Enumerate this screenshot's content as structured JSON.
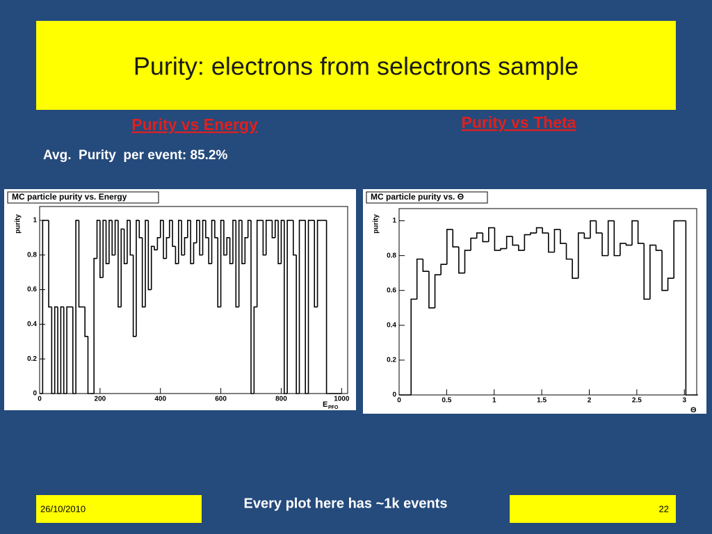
{
  "slide": {
    "title": "Purity: electrons from selectrons sample",
    "left_heading": "Purity vs Energy",
    "right_heading": "Purity vs Theta",
    "note": "Avg.  Purity  per event: 85.2%",
    "footer_date": "26/10/2010",
    "footer_text": "Every plot here has ~1k events",
    "footer_page": "22"
  },
  "chart_data": [
    {
      "type": "histogram",
      "title": "MC particle purity vs. Energy",
      "ylabel": "purity",
      "xlabel": "E",
      "xlabel_subscript": "PFO",
      "color": "#000000",
      "bins": [
        0,
        10,
        20,
        30,
        40,
        50,
        60,
        70,
        80,
        90,
        100,
        110,
        120,
        130,
        140,
        150,
        160,
        170,
        180,
        190,
        200,
        210,
        220,
        230,
        240,
        250,
        260,
        270,
        280,
        290,
        300,
        310,
        320,
        330,
        340,
        350,
        360,
        370,
        380,
        390,
        400,
        410,
        420,
        430,
        440,
        450,
        460,
        470,
        480,
        490,
        500,
        510,
        520,
        530,
        540,
        550,
        560,
        570,
        580,
        590,
        600,
        610,
        620,
        630,
        640,
        650,
        660,
        670,
        680,
        690,
        700,
        710,
        720,
        730,
        740,
        750,
        760,
        770,
        780,
        790,
        800,
        810,
        820,
        830,
        840,
        850,
        860,
        870,
        880,
        890,
        900,
        910,
        920,
        930,
        940,
        950,
        960,
        970,
        980,
        990,
        1000
      ],
      "values": [
        0,
        1,
        1,
        0.5,
        0,
        0.5,
        0,
        0.5,
        0,
        0.5,
        0.5,
        0,
        1,
        0.5,
        0.5,
        0.33,
        0,
        0,
        0.78,
        1,
        0.67,
        1,
        0.75,
        1,
        0.8,
        1,
        0.5,
        0.95,
        0.75,
        1,
        0.8,
        0.33,
        1,
        0.9,
        0.5,
        1,
        0.6,
        0.85,
        0.83,
        0.9,
        1,
        0.78,
        0.9,
        1,
        0.85,
        0.75,
        1,
        0.8,
        0.9,
        1,
        0.75,
        0.87,
        1,
        0.8,
        1,
        0.9,
        0.75,
        1,
        0.9,
        0.5,
        1,
        0.8,
        0.9,
        0.75,
        1,
        0.5,
        1,
        0.75,
        0.9,
        1,
        0,
        0.5,
        1,
        1,
        0.8,
        1,
        1,
        0.9,
        1,
        0.75,
        1,
        0,
        1,
        1,
        0.8,
        0,
        1,
        1,
        0,
        1,
        1,
        0.5,
        1,
        1,
        1,
        0,
        0,
        0,
        0,
        0
      ],
      "xlim": [
        0,
        1020
      ],
      "ylim": [
        0,
        1.08
      ],
      "xticks": [
        0,
        200,
        400,
        600,
        800,
        1000
      ],
      "yticks": [
        0,
        0.2,
        0.4,
        0.6,
        0.8,
        1
      ]
    },
    {
      "type": "histogram",
      "title": "MC particle purity vs. Θ",
      "ylabel": "purity",
      "xlabel": "Θ",
      "color": "#000000",
      "bins": [
        0,
        0.063,
        0.126,
        0.188,
        0.251,
        0.314,
        0.377,
        0.44,
        0.503,
        0.565,
        0.628,
        0.691,
        0.754,
        0.817,
        0.88,
        0.942,
        1.005,
        1.068,
        1.131,
        1.194,
        1.257,
        1.319,
        1.382,
        1.445,
        1.508,
        1.571,
        1.634,
        1.696,
        1.759,
        1.822,
        1.885,
        1.948,
        2.011,
        2.073,
        2.136,
        2.199,
        2.262,
        2.325,
        2.388,
        2.45,
        2.513,
        2.576,
        2.639,
        2.702,
        2.765,
        2.827,
        2.89,
        2.953,
        3.016,
        3.079,
        3.142
      ],
      "values": [
        0,
        0,
        0.55,
        0.78,
        0.71,
        0.5,
        0.69,
        0.75,
        0.95,
        0.85,
        0.7,
        0.83,
        0.9,
        0.93,
        0.88,
        0.96,
        0.83,
        0.84,
        0.91,
        0.86,
        0.83,
        0.92,
        0.93,
        0.96,
        0.93,
        0.82,
        0.95,
        0.87,
        0.78,
        0.67,
        0.93,
        0.9,
        1,
        0.93,
        0.8,
        1,
        0.8,
        0.87,
        0.86,
        1,
        0.87,
        0.55,
        0.86,
        0.83,
        0.6,
        0.67,
        1,
        1,
        0,
        0
      ],
      "xlim": [
        0,
        3.13
      ],
      "ylim": [
        0,
        1.07
      ],
      "xticks": [
        0,
        0.5,
        1,
        1.5,
        2,
        2.5,
        3
      ],
      "yticks": [
        0,
        0.2,
        0.4,
        0.6,
        0.8,
        1
      ]
    }
  ]
}
